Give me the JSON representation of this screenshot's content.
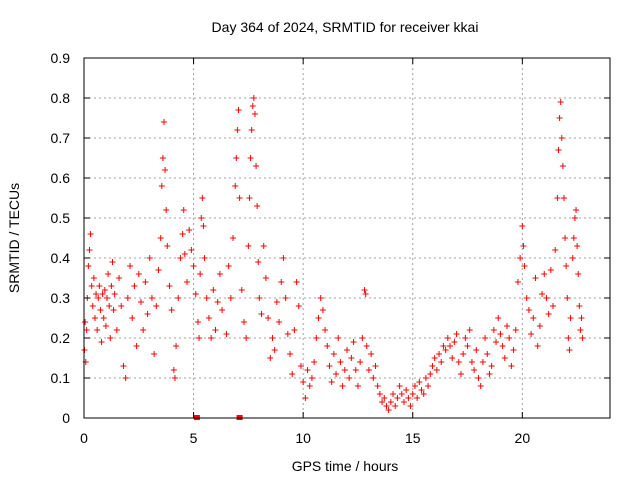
{
  "chart_data": {
    "type": "scatter",
    "title": "Day 364 of 2024, SRMTID for receiver kkai",
    "xlabel": "GPS time / hours",
    "ylabel": "SRMTID / TECUs",
    "xlim": [
      0,
      24
    ],
    "ylim": [
      0,
      0.9
    ],
    "xticks": [
      0,
      5,
      10,
      15,
      20
    ],
    "yticks": [
      0,
      0.1,
      0.2,
      0.3,
      0.4,
      0.5,
      0.6,
      0.7,
      0.8,
      0.9
    ],
    "grid": true,
    "marker": "+",
    "color": "#ff0000",
    "series": [
      {
        "name": "SRMTID",
        "points": [
          [
            0.02,
            0.17
          ],
          [
            0.05,
            0.24
          ],
          [
            0.08,
            0.14
          ],
          [
            0.12,
            0.22
          ],
          [
            0.15,
            0.3
          ],
          [
            0.2,
            0.38
          ],
          [
            0.25,
            0.42
          ],
          [
            0.3,
            0.46
          ],
          [
            0.35,
            0.33
          ],
          [
            0.4,
            0.28
          ],
          [
            0.45,
            0.35
          ],
          [
            0.5,
            0.25
          ],
          [
            0.55,
            0.31
          ],
          [
            0.6,
            0.22
          ],
          [
            0.65,
            0.3
          ],
          [
            0.7,
            0.33
          ],
          [
            0.75,
            0.27
          ],
          [
            0.8,
            0.19
          ],
          [
            0.85,
            0.31
          ],
          [
            0.9,
            0.25
          ],
          [
            0.95,
            0.32
          ],
          [
            1.0,
            0.23
          ],
          [
            1.05,
            0.3
          ],
          [
            1.1,
            0.36
          ],
          [
            1.15,
            0.28
          ],
          [
            1.2,
            0.2
          ],
          [
            1.25,
            0.33
          ],
          [
            1.3,
            0.39
          ],
          [
            1.35,
            0.27
          ],
          [
            1.4,
            0.31
          ],
          [
            1.5,
            0.22
          ],
          [
            1.6,
            0.35
          ],
          [
            1.7,
            0.28
          ],
          [
            1.8,
            0.13
          ],
          [
            1.9,
            0.1
          ],
          [
            2.0,
            0.3
          ],
          [
            2.1,
            0.38
          ],
          [
            2.2,
            0.25
          ],
          [
            2.3,
            0.33
          ],
          [
            2.4,
            0.18
          ],
          [
            2.5,
            0.36
          ],
          [
            2.6,
            0.29
          ],
          [
            2.7,
            0.22
          ],
          [
            2.8,
            0.34
          ],
          [
            2.9,
            0.26
          ],
          [
            3.0,
            0.4
          ],
          [
            3.1,
            0.3
          ],
          [
            3.2,
            0.16
          ],
          [
            3.3,
            0.28
          ],
          [
            3.4,
            0.37
          ],
          [
            3.5,
            0.45
          ],
          [
            3.55,
            0.58
          ],
          [
            3.6,
            0.65
          ],
          [
            3.65,
            0.74
          ],
          [
            3.7,
            0.62
          ],
          [
            3.75,
            0.52
          ],
          [
            3.8,
            0.43
          ],
          [
            3.9,
            0.33
          ],
          [
            4.0,
            0.27
          ],
          [
            4.1,
            0.12
          ],
          [
            4.15,
            0.1
          ],
          [
            4.2,
            0.18
          ],
          [
            4.3,
            0.3
          ],
          [
            4.4,
            0.4
          ],
          [
            4.5,
            0.46
          ],
          [
            4.55,
            0.52
          ],
          [
            4.6,
            0.41
          ],
          [
            4.7,
            0.34
          ],
          [
            4.8,
            0.47
          ],
          [
            4.9,
            0.42
          ],
          [
            5.0,
            0.38
          ],
          [
            5.1,
            0.31
          ],
          [
            5.2,
            0.24
          ],
          [
            5.25,
            0.2
          ],
          [
            5.3,
            0.36
          ],
          [
            5.35,
            0.5
          ],
          [
            5.4,
            0.55
          ],
          [
            5.45,
            0.48
          ],
          [
            5.5,
            0.4
          ],
          [
            5.6,
            0.3
          ],
          [
            5.7,
            0.25
          ],
          [
            5.8,
            0.2
          ],
          [
            5.9,
            0.32
          ],
          [
            6.0,
            0.22
          ],
          [
            6.1,
            0.29
          ],
          [
            6.2,
            0.36
          ],
          [
            6.3,
            0.27
          ],
          [
            6.5,
            0.21
          ],
          [
            6.6,
            0.38
          ],
          [
            6.7,
            0.3
          ],
          [
            6.8,
            0.45
          ],
          [
            6.9,
            0.58
          ],
          [
            6.95,
            0.65
          ],
          [
            7.0,
            0.72
          ],
          [
            7.05,
            0.77
          ],
          [
            7.1,
            0.55
          ],
          [
            7.2,
            0.32
          ],
          [
            7.3,
            0.24
          ],
          [
            7.4,
            0.2
          ],
          [
            7.5,
            0.43
          ],
          [
            7.55,
            0.55
          ],
          [
            7.6,
            0.65
          ],
          [
            7.65,
            0.72
          ],
          [
            7.7,
            0.78
          ],
          [
            7.75,
            0.8
          ],
          [
            7.8,
            0.76
          ],
          [
            7.85,
            0.63
          ],
          [
            7.9,
            0.53
          ],
          [
            7.95,
            0.39
          ],
          [
            8.0,
            0.3
          ],
          [
            8.1,
            0.26
          ],
          [
            8.2,
            0.43
          ],
          [
            8.3,
            0.35
          ],
          [
            8.4,
            0.25
          ],
          [
            8.5,
            0.15
          ],
          [
            8.6,
            0.2
          ],
          [
            8.7,
            0.17
          ],
          [
            8.8,
            0.29
          ],
          [
            8.9,
            0.24
          ],
          [
            9.0,
            0.34
          ],
          [
            9.1,
            0.4
          ],
          [
            9.2,
            0.3
          ],
          [
            9.3,
            0.21
          ],
          [
            9.4,
            0.16
          ],
          [
            9.5,
            0.11
          ],
          [
            9.6,
            0.22
          ],
          [
            9.7,
            0.34
          ],
          [
            9.8,
            0.28
          ],
          [
            9.9,
            0.13
          ],
          [
            10.0,
            0.09
          ],
          [
            10.1,
            0.05
          ],
          [
            10.2,
            0.12
          ],
          [
            10.3,
            0.08
          ],
          [
            10.4,
            0.1
          ],
          [
            10.5,
            0.14
          ],
          [
            10.6,
            0.2
          ],
          [
            10.7,
            0.25
          ],
          [
            10.8,
            0.3
          ],
          [
            10.9,
            0.27
          ],
          [
            11.0,
            0.22
          ],
          [
            11.1,
            0.18
          ],
          [
            11.2,
            0.13
          ],
          [
            11.3,
            0.09
          ],
          [
            11.4,
            0.16
          ],
          [
            11.5,
            0.11
          ],
          [
            11.6,
            0.2
          ],
          [
            11.7,
            0.14
          ],
          [
            11.8,
            0.08
          ],
          [
            11.9,
            0.12
          ],
          [
            12.0,
            0.17
          ],
          [
            12.1,
            0.1
          ],
          [
            12.2,
            0.15
          ],
          [
            12.3,
            0.19
          ],
          [
            12.4,
            0.12
          ],
          [
            12.5,
            0.08
          ],
          [
            12.6,
            0.14
          ],
          [
            12.7,
            0.2
          ],
          [
            12.8,
            0.32
          ],
          [
            12.85,
            0.31
          ],
          [
            12.9,
            0.18
          ],
          [
            13.0,
            0.12
          ],
          [
            13.1,
            0.16
          ],
          [
            13.2,
            0.1
          ],
          [
            13.3,
            0.13
          ],
          [
            13.4,
            0.08
          ],
          [
            13.5,
            0.06
          ],
          [
            13.6,
            0.04
          ],
          [
            13.7,
            0.05
          ],
          [
            13.8,
            0.03
          ],
          [
            13.9,
            0.02
          ],
          [
            14.0,
            0.04
          ],
          [
            14.1,
            0.06
          ],
          [
            14.2,
            0.03
          ],
          [
            14.3,
            0.05
          ],
          [
            14.4,
            0.08
          ],
          [
            14.5,
            0.06
          ],
          [
            14.6,
            0.04
          ],
          [
            14.7,
            0.07
          ],
          [
            14.8,
            0.05
          ],
          [
            14.9,
            0.03
          ],
          [
            15.0,
            0.06
          ],
          [
            15.1,
            0.08
          ],
          [
            15.2,
            0.05
          ],
          [
            15.3,
            0.09
          ],
          [
            15.4,
            0.07
          ],
          [
            15.5,
            0.06
          ],
          [
            15.6,
            0.1
          ],
          [
            15.7,
            0.08
          ],
          [
            15.8,
            0.11
          ],
          [
            15.9,
            0.13
          ],
          [
            16.0,
            0.15
          ],
          [
            16.1,
            0.12
          ],
          [
            16.2,
            0.16
          ],
          [
            16.3,
            0.14
          ],
          [
            16.4,
            0.18
          ],
          [
            16.5,
            0.17
          ],
          [
            16.6,
            0.2
          ],
          [
            16.7,
            0.18
          ],
          [
            16.8,
            0.15
          ],
          [
            16.9,
            0.19
          ],
          [
            17.0,
            0.21
          ],
          [
            17.1,
            0.14
          ],
          [
            17.2,
            0.11
          ],
          [
            17.3,
            0.16
          ],
          [
            17.4,
            0.2
          ],
          [
            17.5,
            0.18
          ],
          [
            17.6,
            0.22
          ],
          [
            17.7,
            0.14
          ],
          [
            17.8,
            0.12
          ],
          [
            17.9,
            0.17
          ],
          [
            18.0,
            0.1
          ],
          [
            18.1,
            0.08
          ],
          [
            18.2,
            0.14
          ],
          [
            18.3,
            0.2
          ],
          [
            18.4,
            0.16
          ],
          [
            18.5,
            0.11
          ],
          [
            18.6,
            0.13
          ],
          [
            18.7,
            0.22
          ],
          [
            18.8,
            0.19
          ],
          [
            18.9,
            0.25
          ],
          [
            19.0,
            0.21
          ],
          [
            19.1,
            0.18
          ],
          [
            19.2,
            0.15
          ],
          [
            19.3,
            0.23
          ],
          [
            19.4,
            0.2
          ],
          [
            19.5,
            0.13
          ],
          [
            19.6,
            0.17
          ],
          [
            19.7,
            0.22
          ],
          [
            19.8,
            0.34
          ],
          [
            19.9,
            0.4
          ],
          [
            20.0,
            0.48
          ],
          [
            20.05,
            0.43
          ],
          [
            20.1,
            0.38
          ],
          [
            20.2,
            0.3
          ],
          [
            20.3,
            0.27
          ],
          [
            20.4,
            0.21
          ],
          [
            20.5,
            0.25
          ],
          [
            20.6,
            0.35
          ],
          [
            20.7,
            0.18
          ],
          [
            20.8,
            0.23
          ],
          [
            20.9,
            0.31
          ],
          [
            21.0,
            0.36
          ],
          [
            21.1,
            0.3
          ],
          [
            21.2,
            0.26
          ],
          [
            21.3,
            0.37
          ],
          [
            21.4,
            0.28
          ],
          [
            21.5,
            0.42
          ],
          [
            21.6,
            0.55
          ],
          [
            21.65,
            0.67
          ],
          [
            21.7,
            0.75
          ],
          [
            21.75,
            0.79
          ],
          [
            21.8,
            0.7
          ],
          [
            21.85,
            0.63
          ],
          [
            21.9,
            0.55
          ],
          [
            21.95,
            0.45
          ],
          [
            22.0,
            0.38
          ],
          [
            22.05,
            0.3
          ],
          [
            22.1,
            0.2
          ],
          [
            22.15,
            0.17
          ],
          [
            22.2,
            0.25
          ],
          [
            22.3,
            0.4
          ],
          [
            22.35,
            0.45
          ],
          [
            22.4,
            0.5
          ],
          [
            22.45,
            0.52
          ],
          [
            22.5,
            0.43
          ],
          [
            22.55,
            0.36
          ],
          [
            22.6,
            0.28
          ],
          [
            22.65,
            0.22
          ],
          [
            22.7,
            0.25
          ],
          [
            22.75,
            0.2
          ]
        ]
      }
    ],
    "low_markers": [
      5.15,
      7.1
    ]
  }
}
